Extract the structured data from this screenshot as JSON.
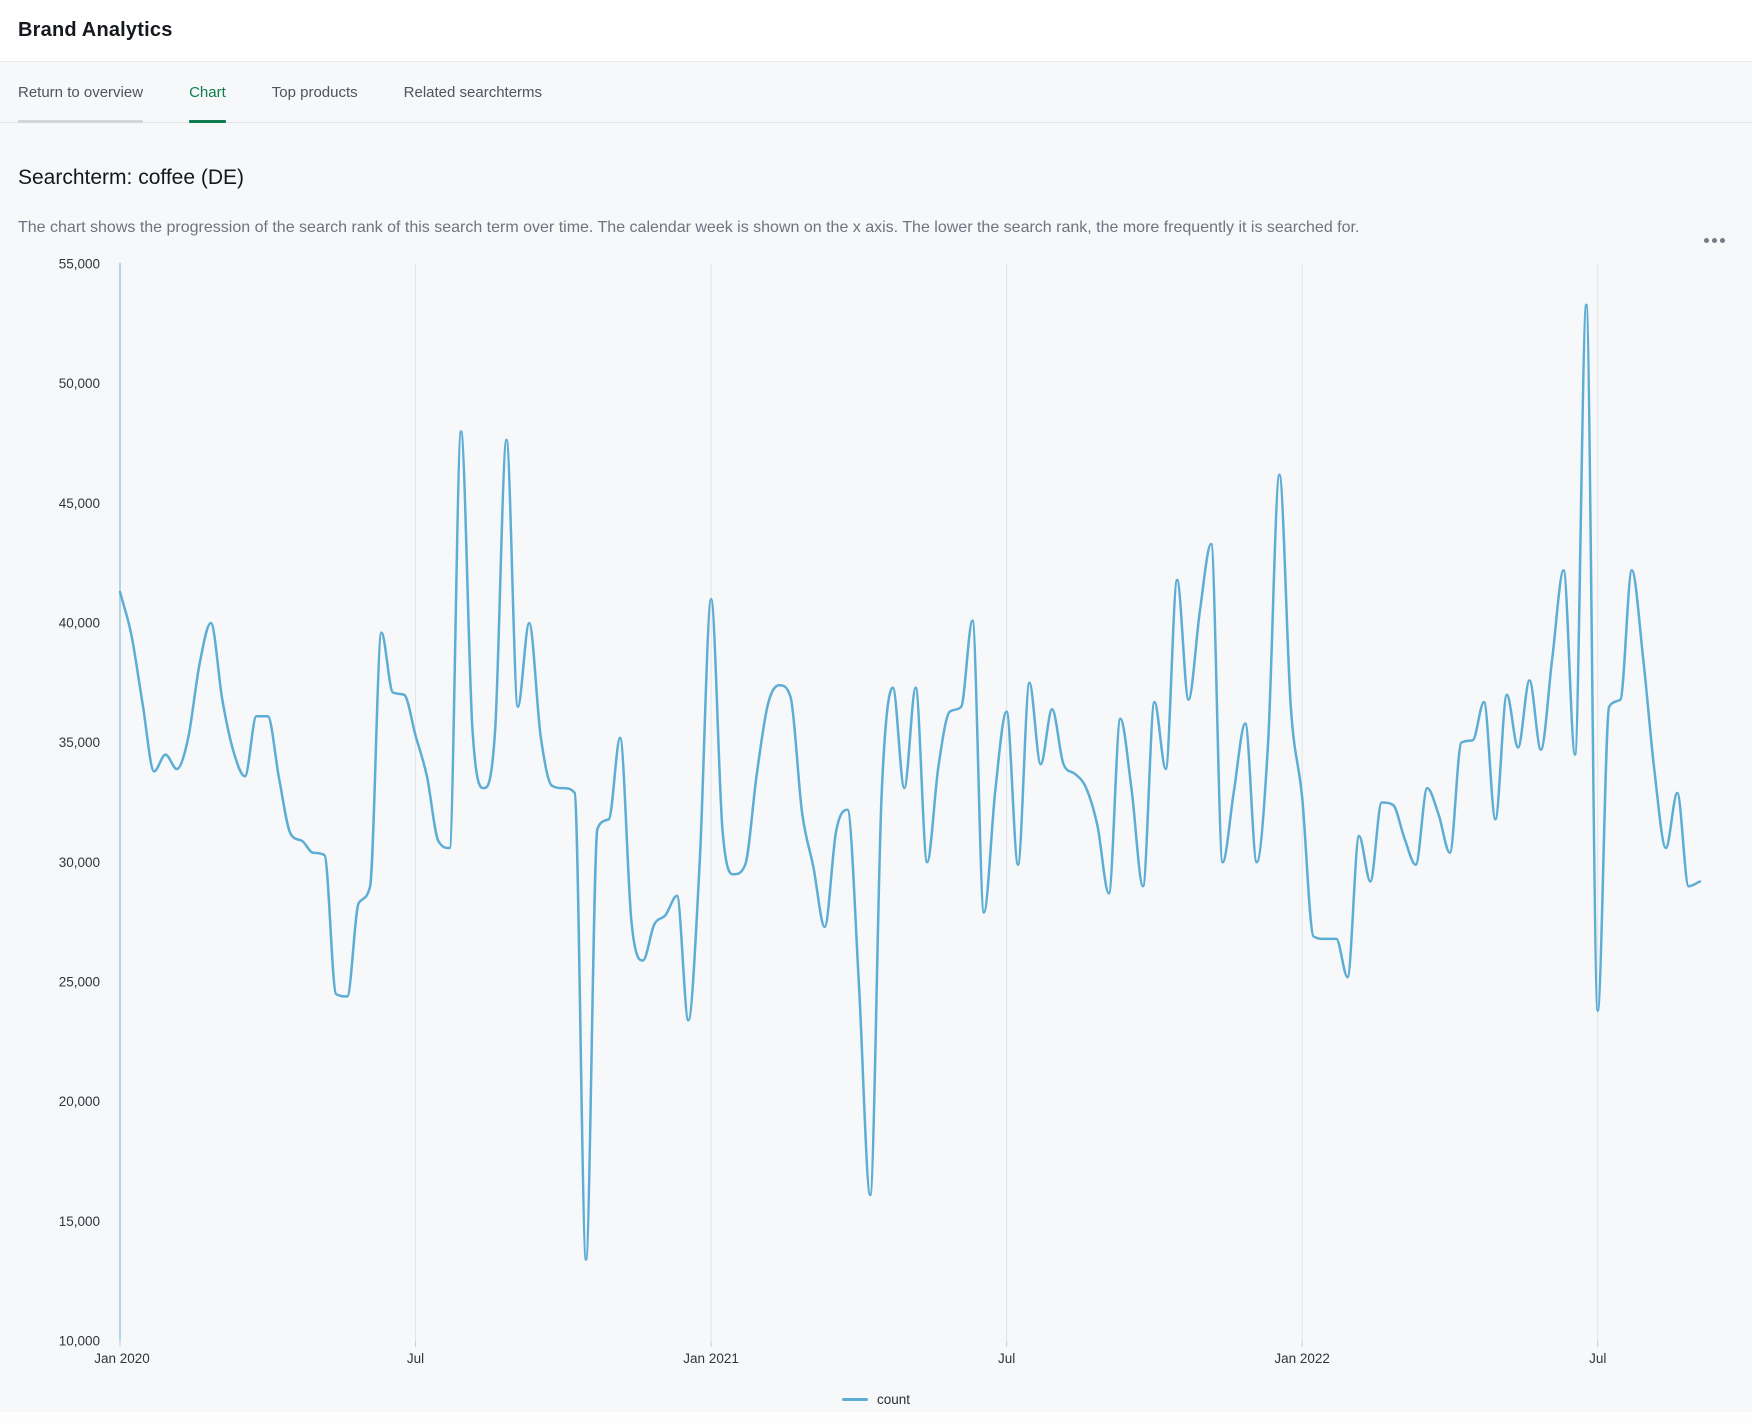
{
  "header": {
    "title": "Brand Analytics"
  },
  "tabs": [
    {
      "label": "Return to overview",
      "active": false
    },
    {
      "label": "Chart",
      "active": true
    },
    {
      "label": "Top products",
      "active": false
    },
    {
      "label": "Related searchterms",
      "active": false
    }
  ],
  "page": {
    "section_title": "Searchterm: coffee (DE)",
    "description": "The chart shows the progression of the search rank of this search term over time. The calendar week is shown on the x axis. The lower the search rank, the more frequently it is searched for."
  },
  "colors": {
    "accent_green": "#0e7c4c",
    "series_blue": "#5dadd4",
    "axis_line_blue": "#b0d7e8",
    "gridline_gray": "#e3e4e7",
    "tick_gray": "#c9ccd1"
  },
  "chart_data": {
    "type": "line",
    "legend": {
      "position": "bottom"
    },
    "grid": "vertical-only",
    "ylim": [
      10000,
      55000
    ],
    "y_ticks": [
      {
        "value": 10000,
        "label": "10,000"
      },
      {
        "value": 15000,
        "label": "15,000"
      },
      {
        "value": 20000,
        "label": "20,000"
      },
      {
        "value": 25000,
        "label": "25,000"
      },
      {
        "value": 30000,
        "label": "30,000"
      },
      {
        "value": 35000,
        "label": "35,000"
      },
      {
        "value": 40000,
        "label": "40,000"
      },
      {
        "value": 45000,
        "label": "45,000"
      },
      {
        "value": 50000,
        "label": "50,000"
      },
      {
        "value": 55000,
        "label": "55,000"
      }
    ],
    "x_ticks": [
      {
        "week": 0,
        "label": "Jan 2020"
      },
      {
        "week": 26,
        "label": "Jul"
      },
      {
        "week": 52,
        "label": "Jan 2021"
      },
      {
        "week": 78,
        "label": "Jul"
      },
      {
        "week": 104,
        "label": "Jan 2022"
      },
      {
        "week": 130,
        "label": "Jul"
      }
    ],
    "series": [
      {
        "name": "count",
        "color": "#5dadd4",
        "values": [
          41300,
          39500,
          36600,
          33800,
          34500,
          33900,
          35200,
          38300,
          40000,
          36800,
          34600,
          33600,
          36100,
          36100,
          33500,
          31200,
          30900,
          30400,
          30300,
          24500,
          24400,
          28300,
          29000,
          39600,
          37100,
          37000,
          35300,
          33600,
          30900,
          30600,
          48000,
          35600,
          33100,
          35500,
          47650,
          36500,
          40000,
          35300,
          33200,
          33100,
          32900,
          13400,
          31400,
          31800,
          35200,
          27500,
          25900,
          27400,
          27800,
          28600,
          23400,
          30000,
          41000,
          31400,
          29500,
          29900,
          33600,
          36600,
          37400,
          36900,
          32100,
          29800,
          27300,
          31300,
          32200,
          25000,
          16100,
          32800,
          37300,
          33100,
          37300,
          30000,
          34000,
          36300,
          36500,
          40100,
          27900,
          33000,
          36300,
          29900,
          37500,
          34100,
          36400,
          34100,
          33700,
          33100,
          31500,
          28700,
          36000,
          33000,
          29000,
          36700,
          33900,
          41800,
          36800,
          40500,
          43300,
          30000,
          33000,
          35800,
          30000,
          35000,
          46200,
          36500,
          32700,
          26900,
          26800,
          26800,
          25200,
          31100,
          29200,
          32500,
          32400,
          31000,
          29900,
          33100,
          32000,
          30400,
          35000,
          35100,
          36700,
          31800,
          37000,
          34800,
          37600,
          34700,
          38500,
          42200,
          34500,
          53300,
          23800,
          36500,
          36800,
          42200,
          38500,
          33800,
          30600,
          32900,
          29000,
          29200
        ]
      }
    ]
  }
}
